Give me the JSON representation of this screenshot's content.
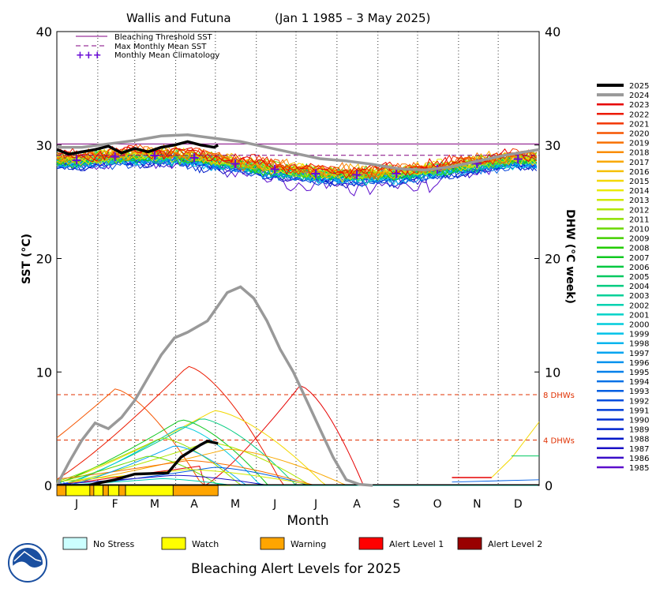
{
  "chart_data": {
    "type": "line",
    "title": "Wallis and Futuna",
    "date_range": "(Jan 1 1985 – 3 May 2025)",
    "xlabel": "Month",
    "ylabel_left": "SST (°C)",
    "ylabel_right": "DHW (°C week)",
    "ylim": [
      0,
      40
    ],
    "y_ticks": [
      "0",
      "10",
      "20",
      "30",
      "40"
    ],
    "months": [
      "J",
      "F",
      "M",
      "A",
      "M",
      "J",
      "J",
      "A",
      "S",
      "O",
      "N",
      "D"
    ],
    "grid": "dotted vertical at month boundaries",
    "legend_placement": "top-left",
    "legend": {
      "threshold": "Bleaching Threshold SST",
      "mmm": "Max Monthly Mean SST",
      "climatology": "Monthly Mean Climatology"
    },
    "bleaching_threshold": 30.1,
    "max_monthly_mean": 29.1,
    "climatology_marker": "+++",
    "climatology": [
      28.7,
      29.0,
      29.1,
      28.9,
      28.4,
      27.9,
      27.5,
      27.4,
      27.5,
      27.9,
      28.4,
      28.8
    ],
    "dhw_lines": [
      {
        "label": "8 DHWs",
        "value": 8
      },
      {
        "label": "4 DHWs",
        "value": 4
      }
    ],
    "years": [
      "2025",
      "2024",
      "2023",
      "2022",
      "2021",
      "2020",
      "2019",
      "2018",
      "2017",
      "2016",
      "2015",
      "2014",
      "2013",
      "2012",
      "2011",
      "2010",
      "2009",
      "2008",
      "2007",
      "2006",
      "2005",
      "2004",
      "2003",
      "2002",
      "2001",
      "2000",
      "1999",
      "1998",
      "1997",
      "1996",
      "1995",
      "1994",
      "1993",
      "1992",
      "1991",
      "1990",
      "1989",
      "1988",
      "1987",
      "1986",
      "1985"
    ],
    "year_colors": [
      "#000000",
      "#999999",
      "#e60000",
      "#ec1a00",
      "#f23500",
      "#f65500",
      "#f87000",
      "#fa8c00",
      "#f9a800",
      "#f5c000",
      "#f3d800",
      "#eaeb00",
      "#d0ea00",
      "#b0e600",
      "#8ee000",
      "#6ad800",
      "#44d000",
      "#22cc00",
      "#10c820",
      "#00c840",
      "#00c860",
      "#00cc80",
      "#00d098",
      "#00d2b0",
      "#00d2c8",
      "#00ccdc",
      "#00c2e8",
      "#00b4ee",
      "#00a4f0",
      "#0092ee",
      "#0080ea",
      "#0070e6",
      "#005ee2",
      "#004ede",
      "#003ed8",
      "#0030d2",
      "#0024ce",
      "#0018c8",
      "#1a10c6",
      "#3a0ec8",
      "#5c0ecc"
    ],
    "sst_2025": {
      "x": [
        1,
        10,
        20,
        30,
        40,
        50,
        60,
        70,
        80,
        90,
        100,
        110,
        120,
        123
      ],
      "y": [
        29.6,
        29.2,
        29.4,
        29.6,
        29.9,
        29.3,
        29.7,
        29.4,
        29.8,
        30.0,
        30.3,
        30.0,
        29.8,
        30.0
      ]
    },
    "sst_2024": {
      "x": [
        1,
        20,
        40,
        60,
        80,
        100,
        120,
        140,
        160,
        180,
        200,
        220,
        240,
        260,
        280,
        300,
        320,
        340,
        366
      ],
      "y": [
        29.8,
        29.8,
        30.1,
        30.4,
        30.8,
        30.9,
        30.6,
        30.3,
        29.8,
        29.3,
        28.8,
        28.6,
        28.3,
        27.9,
        27.8,
        28.1,
        28.6,
        29.1,
        29.6
      ]
    },
    "dhw_2025": {
      "x": [
        1,
        25,
        32,
        45,
        60,
        85,
        95,
        110,
        115,
        123
      ],
      "y": [
        0,
        0,
        0.2,
        0.5,
        1.0,
        1.1,
        2.5,
        3.6,
        3.9,
        3.7
      ]
    },
    "dhw_2024": {
      "x": [
        1,
        10,
        20,
        30,
        40,
        50,
        60,
        70,
        80,
        90,
        100,
        115,
        130,
        140,
        150,
        160,
        170,
        180,
        190,
        200,
        210,
        220,
        230,
        240
      ],
      "y": [
        0,
        2.0,
        4.0,
        5.5,
        5.0,
        6.0,
        7.5,
        9.5,
        11.5,
        13.0,
        13.5,
        14.5,
        17.0,
        17.5,
        16.5,
        14.5,
        12.0,
        10.0,
        7.5,
        5.0,
        2.5,
        0.5,
        0.1,
        0
      ]
    },
    "alert_bar": [
      {
        "level": "Warning",
        "start": 1,
        "end": 8
      },
      {
        "level": "Watch",
        "start": 8,
        "end": 26
      },
      {
        "level": "Warning",
        "start": 26,
        "end": 29
      },
      {
        "level": "Watch",
        "start": 29,
        "end": 36
      },
      {
        "level": "Warning",
        "start": 36,
        "end": 40
      },
      {
        "level": "Watch",
        "start": 40,
        "end": 48
      },
      {
        "level": "Warning",
        "start": 48,
        "end": 53
      },
      {
        "level": "Watch",
        "start": 53,
        "end": 89
      },
      {
        "level": "Warning",
        "start": 89,
        "end": 123
      }
    ],
    "alert_legend": [
      {
        "label": "No Stress",
        "color": "#ccffff"
      },
      {
        "label": "Watch",
        "color": "#ffff00"
      },
      {
        "label": "Warning",
        "color": "#ffa500"
      },
      {
        "label": "Alert Level 1",
        "color": "#ff0000"
      },
      {
        "label": "Alert Level 2",
        "color": "#990000"
      }
    ],
    "footer": "Bleaching Alert Levels for 2025",
    "colors": {
      "threshold": "#800080",
      "climatology": "#6a0dd6",
      "dhw_ref": "#e03000",
      "dhw_label": "#e03000"
    }
  }
}
